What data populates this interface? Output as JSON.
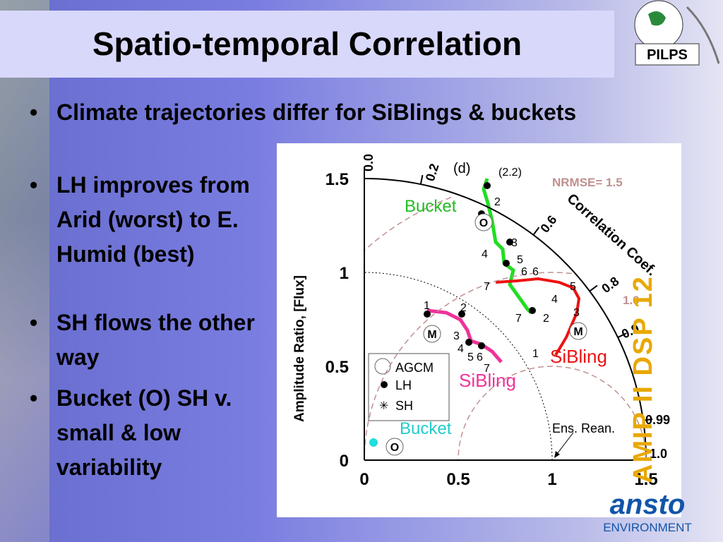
{
  "header": {
    "title": "Spatio-temporal Correlation",
    "logo": "PILPS"
  },
  "bullets": [
    "Climate trajectories differ for SiBlings & buckets",
    "LH improves from Arid (worst) to E. Humid (best)",
    "SH flows the other way",
    "Bucket (O) SH v. small & low variability"
  ],
  "figure": {
    "panel": "(d)",
    "ylabel": "Amplitude Ratio, [Flux]",
    "x_ticks": [
      "0",
      "0.5",
      "1",
      "1.5"
    ],
    "y_ticks": [
      "0",
      "0.5",
      "1",
      "1.5"
    ],
    "corr_title": "Correlation Coef.",
    "corr_ticks": [
      "0.0",
      "0.2",
      "0.6",
      "0.8",
      "0.9",
      "0.99",
      "1.0"
    ],
    "nrmse": [
      "NRMSE= 1.5",
      "1.0"
    ],
    "annotations": [
      "(2.2)",
      "Bucket",
      "SiBling",
      "SiBling",
      "Bucket",
      "Ens. Rean."
    ],
    "legend": [
      "AGCM",
      "LH",
      "SH"
    ],
    "markers": [
      "O",
      "M",
      "M",
      "O"
    ],
    "point_labels": [
      "2",
      "3",
      "4",
      "5",
      "6",
      "6",
      "7",
      "7",
      "1",
      "2",
      "3",
      "4",
      "5",
      "1",
      "2",
      "3",
      "4",
      "5",
      "6",
      "7"
    ]
  },
  "side": "AMIP II DSP 12",
  "footer": {
    "brand": "ansto",
    "sub": "ENVIRONMENT"
  }
}
